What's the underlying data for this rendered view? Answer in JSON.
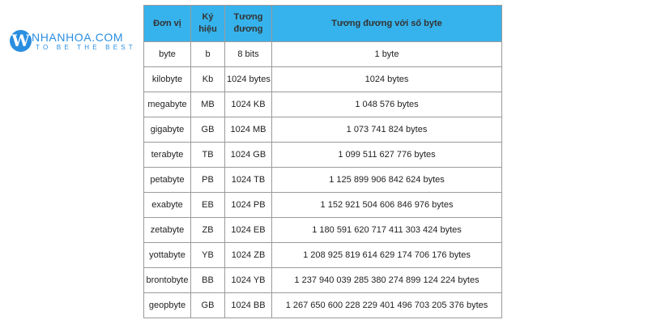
{
  "logo": {
    "mark": "W",
    "name": "NHANHOA.COM",
    "tagline": "TO BE THE BEST",
    "color": "#2a8ee0"
  },
  "table": {
    "header_color": "#36b3ec",
    "headers": [
      "Đơn vị",
      "Ký hiệu",
      "Tương đương",
      "Tương đương với số byte"
    ],
    "rows": [
      [
        "byte",
        "b",
        "8 bits",
        "1 byte"
      ],
      [
        "kilobyte",
        "Kb",
        "1024 bytes",
        "1024 bytes"
      ],
      [
        "megabyte",
        "MB",
        "1024 KB",
        "1 048 576 bytes"
      ],
      [
        "gigabyte",
        "GB",
        "1024 MB",
        "1 073 741 824 bytes"
      ],
      [
        "terabyte",
        "TB",
        "1024 GB",
        "1 099 511 627 776 bytes"
      ],
      [
        "petabyte",
        "PB",
        "1024 TB",
        "1 125 899 906 842 624 bytes"
      ],
      [
        "exabyte",
        "EB",
        "1024 PB",
        "1 152 921 504 606 846 976 bytes"
      ],
      [
        "zetabyte",
        "ZB",
        "1024 EB",
        "1 180 591 620 717 411 303 424 bytes"
      ],
      [
        "yottabyte",
        "YB",
        "1024 ZB",
        "1 208 925 819 614 629 174 706 176 bytes"
      ],
      [
        "brontobyte",
        "BB",
        "1024 YB",
        "1 237 940 039 285 380 274 899 124 224 bytes"
      ],
      [
        "geopbyte",
        "GB",
        "1024 BB",
        "1 267 650 600 228 229 401 496 703 205 376 bytes"
      ]
    ]
  }
}
